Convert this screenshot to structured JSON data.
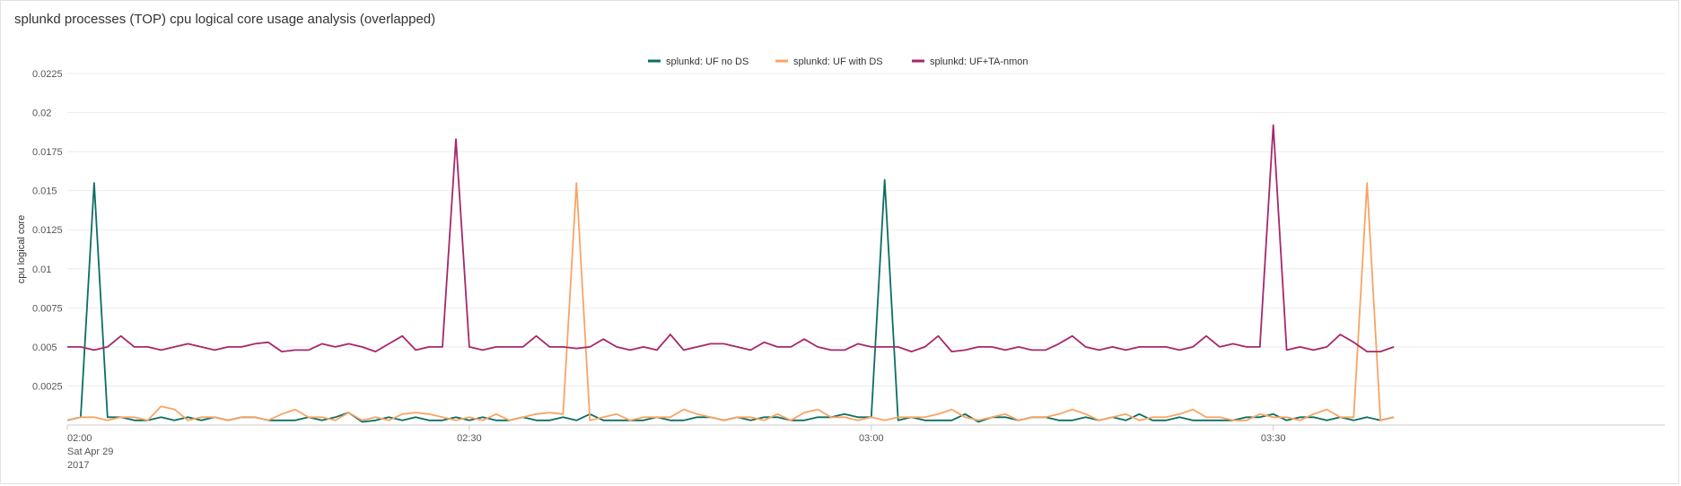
{
  "panel": {
    "title": "splunkd processes (TOP) cpu logical core usage analysis (overlapped)"
  },
  "colors": {
    "grid": "#ececec",
    "axis": "#cccccc"
  },
  "chart_data": {
    "type": "line",
    "title": "splunkd processes (TOP) cpu logical core usage analysis (overlapped)",
    "xlabel": "",
    "ylabel": "cpu logical core",
    "ylim": [
      0,
      0.0225
    ],
    "y_ticks": [
      {
        "value": 0.0025,
        "label": "0.0025"
      },
      {
        "value": 0.005,
        "label": "0.005"
      },
      {
        "value": 0.0075,
        "label": "0.0075"
      },
      {
        "value": 0.01,
        "label": "0.01"
      },
      {
        "value": 0.0125,
        "label": "0.0125"
      },
      {
        "value": 0.015,
        "label": "0.015"
      },
      {
        "value": 0.0175,
        "label": "0.0175"
      },
      {
        "value": 0.02,
        "label": "0.02"
      },
      {
        "value": 0.0225,
        "label": "0.0225"
      }
    ],
    "x_range_minutes": [
      0,
      100
    ],
    "x_ticks": [
      {
        "minute": 0,
        "lines": [
          "02:00",
          "Sat Apr 29",
          "2017"
        ]
      },
      {
        "minute": 30,
        "lines": [
          "02:30"
        ]
      },
      {
        "minute": 60,
        "lines": [
          "03:00"
        ]
      },
      {
        "minute": 90,
        "lines": [
          "03:30"
        ]
      }
    ],
    "grid": true,
    "legend_position": "top-center",
    "series": [
      {
        "name": "splunkd: UF no DS",
        "color": "#0c6e61",
        "x": [
          0,
          1,
          2,
          3,
          4,
          5,
          6,
          7,
          8,
          9,
          10,
          11,
          12,
          13,
          14,
          15,
          16,
          17,
          18,
          19,
          20,
          21,
          22,
          23,
          24,
          25,
          26,
          27,
          28,
          29,
          30,
          31,
          32,
          33,
          34,
          35,
          36,
          37,
          38,
          39,
          40,
          41,
          42,
          43,
          44,
          45,
          46,
          47,
          48,
          49,
          50,
          51,
          52,
          53,
          54,
          55,
          56,
          57,
          58,
          59,
          60,
          61,
          62,
          63,
          64,
          65,
          66,
          67,
          68,
          69,
          70,
          71,
          72,
          73,
          74,
          75,
          76,
          77,
          78,
          79,
          80,
          81,
          82,
          83,
          84,
          85,
          86,
          87,
          88,
          89,
          90,
          91,
          92,
          93,
          94,
          95,
          96,
          97,
          98,
          99
        ],
        "y": [
          0.0003,
          0.0005,
          0.0155,
          0.0005,
          0.0005,
          0.0003,
          0.0003,
          0.0005,
          0.0003,
          0.0005,
          0.0003,
          0.0005,
          0.0003,
          0.0005,
          0.0005,
          0.0003,
          0.0003,
          0.0003,
          0.0005,
          0.0003,
          0.0005,
          0.0008,
          0.0002,
          0.0003,
          0.0005,
          0.0003,
          0.0005,
          0.0003,
          0.0003,
          0.0005,
          0.0003,
          0.0005,
          0.0003,
          0.0003,
          0.0005,
          0.0003,
          0.0003,
          0.0005,
          0.0003,
          0.0007,
          0.0003,
          0.0003,
          0.0003,
          0.0003,
          0.0005,
          0.0003,
          0.0003,
          0.0005,
          0.0005,
          0.0003,
          0.0005,
          0.0003,
          0.0005,
          0.0005,
          0.0003,
          0.0003,
          0.0005,
          0.0005,
          0.0007,
          0.0005,
          0.0005,
          0.0157,
          0.0003,
          0.0005,
          0.0003,
          0.0003,
          0.0003,
          0.0007,
          0.0002,
          0.0005,
          0.0005,
          0.0003,
          0.0005,
          0.0005,
          0.0003,
          0.0003,
          0.0005,
          0.0003,
          0.0005,
          0.0003,
          0.0007,
          0.0003,
          0.0003,
          0.0005,
          0.0003,
          0.0003,
          0.0003,
          0.0003,
          0.0005,
          0.0005,
          0.0007,
          0.0003,
          0.0005,
          0.0005,
          0.0003,
          0.0005,
          0.0003,
          0.0005,
          0.0003,
          0.0005
        ]
      },
      {
        "name": "splunkd: UF with DS",
        "color": "#f7a465",
        "x": [
          0,
          1,
          2,
          3,
          4,
          5,
          6,
          7,
          8,
          9,
          10,
          11,
          12,
          13,
          14,
          15,
          16,
          17,
          18,
          19,
          20,
          21,
          22,
          23,
          24,
          25,
          26,
          27,
          28,
          29,
          30,
          31,
          32,
          33,
          34,
          35,
          36,
          37,
          38,
          39,
          40,
          41,
          42,
          43,
          44,
          45,
          46,
          47,
          48,
          49,
          50,
          51,
          52,
          53,
          54,
          55,
          56,
          57,
          58,
          59,
          60,
          61,
          62,
          63,
          64,
          65,
          66,
          67,
          68,
          69,
          70,
          71,
          72,
          73,
          74,
          75,
          76,
          77,
          78,
          79,
          80,
          81,
          82,
          83,
          84,
          85,
          86,
          87,
          88,
          89,
          90,
          91,
          92,
          93,
          94,
          95,
          96,
          97,
          98,
          99
        ],
        "y": [
          0.0003,
          0.0005,
          0.0005,
          0.0003,
          0.0005,
          0.0005,
          0.0003,
          0.0012,
          0.001,
          0.0003,
          0.0005,
          0.0005,
          0.0003,
          0.0005,
          0.0005,
          0.0003,
          0.0007,
          0.001,
          0.0005,
          0.0005,
          0.0003,
          0.0008,
          0.0003,
          0.0005,
          0.0003,
          0.0007,
          0.0008,
          0.0007,
          0.0005,
          0.0003,
          0.0005,
          0.0003,
          0.0007,
          0.0003,
          0.0005,
          0.0007,
          0.0008,
          0.0007,
          0.0155,
          0.0003,
          0.0005,
          0.0007,
          0.0003,
          0.0005,
          0.0005,
          0.0005,
          0.001,
          0.0007,
          0.0005,
          0.0003,
          0.0005,
          0.0005,
          0.0003,
          0.0007,
          0.0003,
          0.0008,
          0.001,
          0.0005,
          0.0005,
          0.0003,
          0.0005,
          0.0003,
          0.0005,
          0.0005,
          0.0005,
          0.0007,
          0.001,
          0.0005,
          0.0003,
          0.0005,
          0.0007,
          0.0003,
          0.0005,
          0.0005,
          0.0007,
          0.001,
          0.0007,
          0.0003,
          0.0005,
          0.0007,
          0.0003,
          0.0005,
          0.0005,
          0.0007,
          0.001,
          0.0005,
          0.0005,
          0.0003,
          0.0003,
          0.0007,
          0.0005,
          0.0005,
          0.0003,
          0.0007,
          0.001,
          0.0005,
          0.0005,
          0.0155,
          0.0003,
          0.0005
        ]
      },
      {
        "name": "splunkd: UF+TA-nmon",
        "color": "#a5286a",
        "x": [
          0,
          1,
          2,
          3,
          4,
          5,
          6,
          7,
          8,
          9,
          10,
          11,
          12,
          13,
          14,
          15,
          16,
          17,
          18,
          19,
          20,
          21,
          22,
          23,
          24,
          25,
          26,
          27,
          28,
          29,
          30,
          31,
          32,
          33,
          34,
          35,
          36,
          37,
          38,
          39,
          40,
          41,
          42,
          43,
          44,
          45,
          46,
          47,
          48,
          49,
          50,
          51,
          52,
          53,
          54,
          55,
          56,
          57,
          58,
          59,
          60,
          61,
          62,
          63,
          64,
          65,
          66,
          67,
          68,
          69,
          70,
          71,
          72,
          73,
          74,
          75,
          76,
          77,
          78,
          79,
          80,
          81,
          82,
          83,
          84,
          85,
          86,
          87,
          88,
          89,
          90,
          91,
          92,
          93,
          94,
          95,
          96,
          97,
          98,
          99
        ],
        "y": [
          0.005,
          0.005,
          0.0048,
          0.005,
          0.0057,
          0.005,
          0.005,
          0.0048,
          0.005,
          0.0052,
          0.005,
          0.0048,
          0.005,
          0.005,
          0.0052,
          0.0053,
          0.0047,
          0.0048,
          0.0048,
          0.0052,
          0.005,
          0.0052,
          0.005,
          0.0047,
          0.0052,
          0.0057,
          0.0048,
          0.005,
          0.005,
          0.0183,
          0.005,
          0.0048,
          0.005,
          0.005,
          0.005,
          0.0057,
          0.005,
          0.005,
          0.0049,
          0.005,
          0.0055,
          0.005,
          0.0048,
          0.005,
          0.0048,
          0.0058,
          0.0048,
          0.005,
          0.0052,
          0.0052,
          0.005,
          0.0048,
          0.0053,
          0.005,
          0.005,
          0.0055,
          0.005,
          0.0048,
          0.0048,
          0.0052,
          0.005,
          0.005,
          0.005,
          0.0047,
          0.005,
          0.0057,
          0.0047,
          0.0048,
          0.005,
          0.005,
          0.0048,
          0.005,
          0.0048,
          0.0048,
          0.0052,
          0.0057,
          0.005,
          0.0048,
          0.005,
          0.0048,
          0.005,
          0.005,
          0.005,
          0.0048,
          0.005,
          0.0057,
          0.005,
          0.0052,
          0.005,
          0.005,
          0.0192,
          0.0048,
          0.005,
          0.0048,
          0.005,
          0.0058,
          0.0053,
          0.0047,
          0.0047,
          0.005
        ]
      }
    ]
  }
}
